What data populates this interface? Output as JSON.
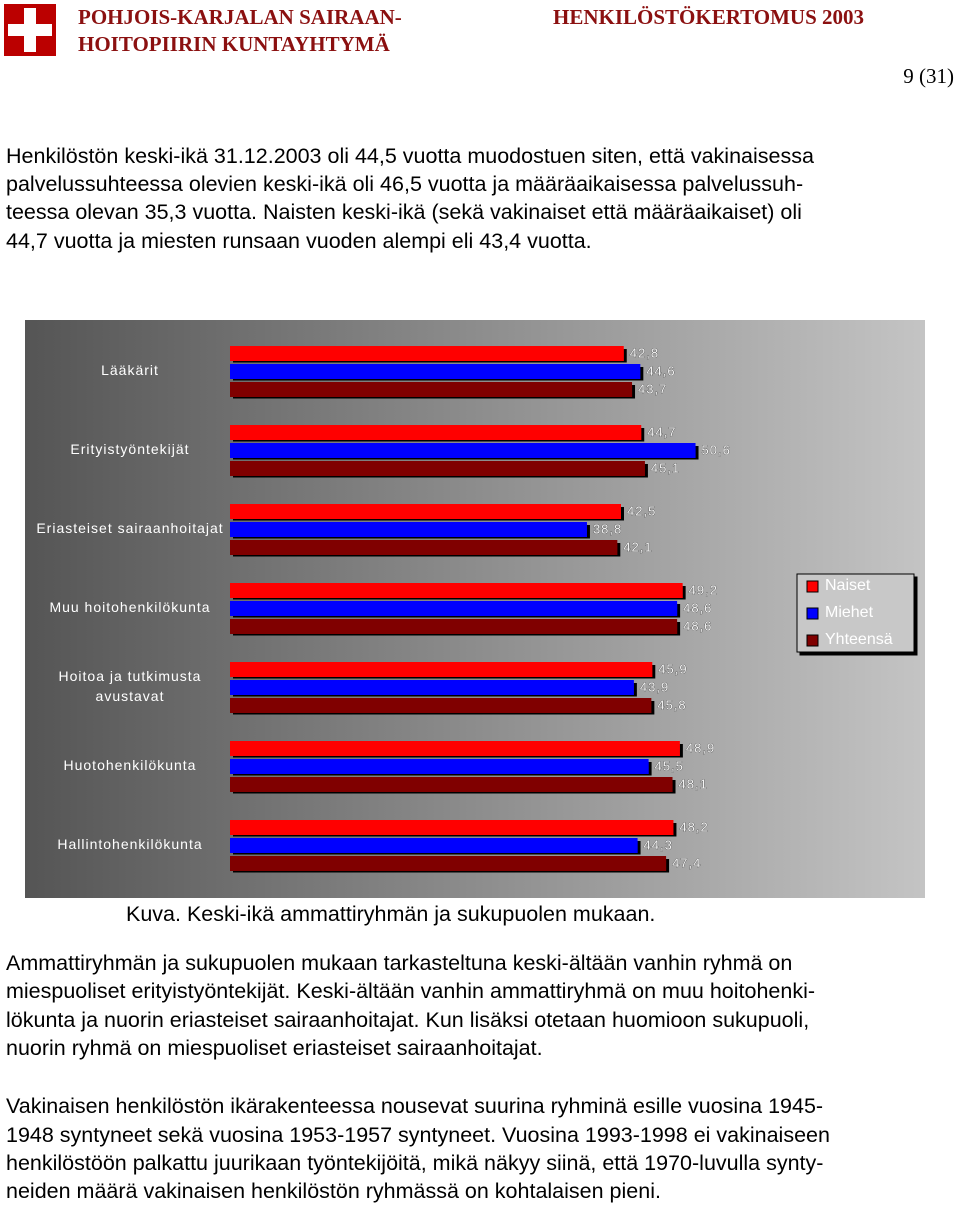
{
  "header": {
    "organization": [
      "POHJOIS-KARJALAN SAIRAAN-",
      "HOITOPIIRIN KUNTAYHTYMÄ"
    ],
    "document_title": "HENKILÖSTÖKERTOMUS 2003",
    "page": "9 (31)"
  },
  "paragraphs": [
    [
      "Henkilöstön keski-ikä 31.12.2003 oli 44,5 vuotta muodostuen siten, että vakinaisessa",
      "palvelussuhteessa olevien keski-ikä oli 46,5 vuotta ja määräaikaisessa palvelussuh-",
      "teessa olevan 35,3 vuotta. Naisten keski-ikä (sekä vakinaiset että määräaikaiset) oli",
      "44,7 vuotta ja miesten runsaan vuoden alempi eli 43,4 vuotta."
    ],
    [
      "Ammattiryhmän ja sukupuolen mukaan tarkasteltuna keski-ältään vanhin ryhmä on",
      "miespuoliset erityistyöntekijät. Keski-ältään vanhin ammattiryhmä on muu hoitohenki-",
      "lökunta ja nuorin eriasteiset sairaanhoitajat. Kun lisäksi otetaan huomioon sukupuoli,",
      "nuorin ryhmä on miespuoliset eriasteiset sairaanhoitajat."
    ],
    [
      "Vakinaisen henkilöstön ikärakenteessa nousevat suurina ryhminä esille vuosina 1945-",
      "1948 syntyneet sekä vuosina 1953-1957 syntyneet. Vuosina 1993-1998 ei vakinaiseen",
      "henkilöstöön palkattu juurikaan työntekijöitä, mikä näkyy siinä, että 1970-luvulla synty-",
      "neiden määrä vakinaisen henkilöstön ryhmässä on kohtalaisen pieni."
    ]
  ],
  "caption": "Kuva. Keski-ikä ammattiryhmän ja sukupuolen mukaan.",
  "chart_data": {
    "type": "hbar",
    "categories": [
      "Lääkärit",
      "Erityistyöntekijät",
      "Eriasteiset sairaanhoitajat",
      "Muu hoitohenkilökunta",
      "Hoitoa ja tutkimusta avustavat",
      "Huotohenkilökunta",
      "Hallintohenkilökunta"
    ],
    "series": [
      {
        "name": "Naiset",
        "color": "#ff0000",
        "values": [
          42.8,
          44.7,
          42.5,
          49.2,
          45.9,
          48.9,
          48.2
        ],
        "value_labels": [
          "42,8",
          "44,7",
          "42,5",
          "49,2",
          "45,9",
          "48,9",
          "48,2"
        ]
      },
      {
        "name": "Miehet",
        "color": "#0000ff",
        "values": [
          44.6,
          50.6,
          38.8,
          48.6,
          43.9,
          45.5,
          44.3
        ],
        "value_labels": [
          "44,6",
          "50,6",
          "38,8",
          "48,6",
          "43,9",
          "45,5",
          "44,3"
        ]
      },
      {
        "name": "Yhteensä",
        "color": "#800000",
        "values": [
          43.7,
          45.1,
          42.1,
          48.6,
          45.8,
          48.1,
          47.4
        ],
        "value_labels": [
          "43,7",
          "45,1",
          "42,1",
          "48,6",
          "45,8",
          "48,1",
          "47,4"
        ]
      }
    ],
    "xlim": [
      0,
      75
    ],
    "legend": "right"
  }
}
